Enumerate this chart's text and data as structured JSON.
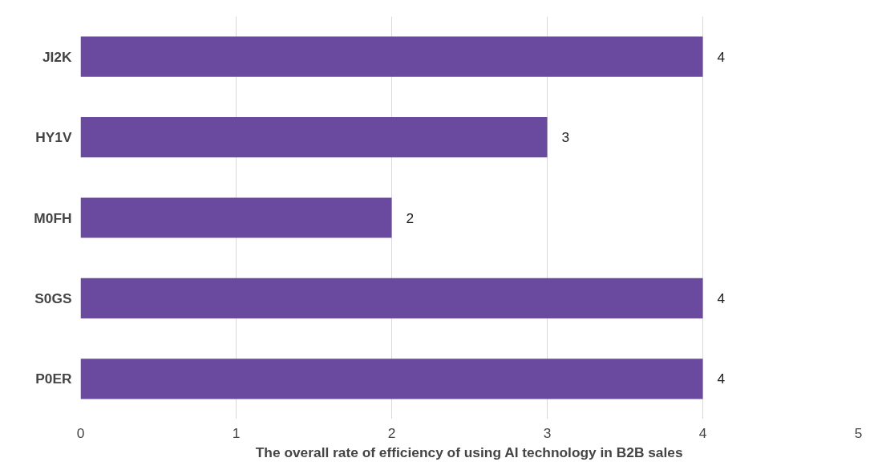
{
  "chart_data": {
    "type": "bar",
    "orientation": "horizontal",
    "xlabel": "The overall rate of efficiency of using AI technology in B2B sales",
    "categories": [
      "JI2K",
      "HY1V",
      "M0FH",
      "S0GS",
      "P0ER"
    ],
    "values": [
      4,
      3,
      2,
      4,
      4
    ],
    "color": "#6a4a9e",
    "xlim": [
      0,
      5
    ],
    "xticks": [
      0,
      1,
      2,
      3,
      4,
      5
    ],
    "grid": "x",
    "data_labels": true
  }
}
